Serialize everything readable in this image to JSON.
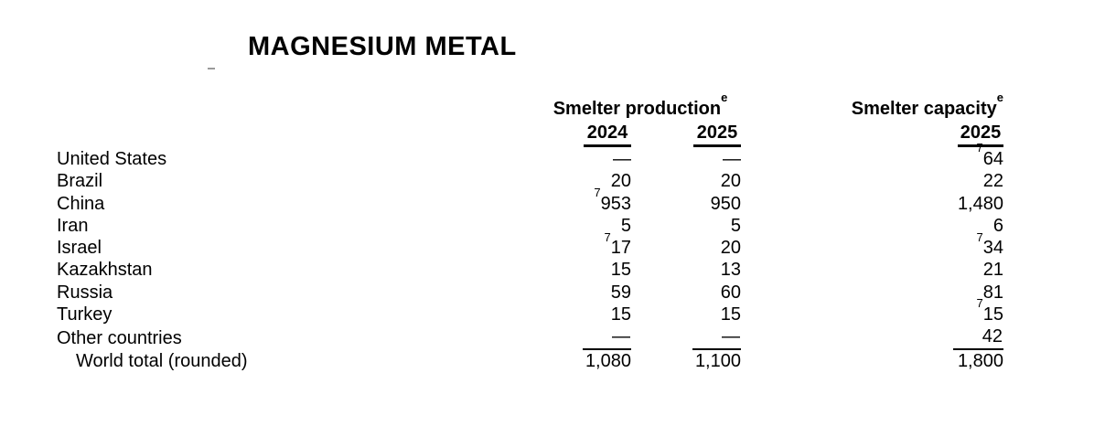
{
  "title": "MAGNESIUM METAL",
  "colors": {
    "text": "#000000",
    "background": "#ffffff",
    "stray_mark": "#9a9a9a"
  },
  "table": {
    "production_header": {
      "label": "Smelter production",
      "footnote": "e"
    },
    "capacity_header": {
      "label": "Smelter capacity",
      "footnote": "e"
    },
    "years": {
      "production_2024": "2024",
      "production_2025": "2025",
      "capacity_2025": "2025"
    },
    "rows": [
      {
        "country": "United States",
        "prod_2024": "—",
        "prod_2025": "—",
        "cap_2025": "64",
        "cap_2025_sup": "7"
      },
      {
        "country": "Brazil",
        "prod_2024": "20",
        "prod_2025": "20",
        "cap_2025": "22"
      },
      {
        "country": "China",
        "prod_2024": "953",
        "prod_2024_sup": "7",
        "prod_2025": "950",
        "cap_2025": "1,480"
      },
      {
        "country": "Iran",
        "prod_2024": "5",
        "prod_2025": "5",
        "cap_2025": "6"
      },
      {
        "country": "Israel",
        "prod_2024": "17",
        "prod_2024_sup": "7",
        "prod_2025": "20",
        "cap_2025": "34",
        "cap_2025_sup": "7"
      },
      {
        "country": "Kazakhstan",
        "prod_2024": "15",
        "prod_2025": "13",
        "cap_2025": "21"
      },
      {
        "country": "Russia",
        "prod_2024": "59",
        "prod_2025": "60",
        "cap_2025": "81"
      },
      {
        "country": "Turkey",
        "prod_2024": "15",
        "prod_2025": "15",
        "cap_2025": "15",
        "cap_2025_sup": "7"
      },
      {
        "country": "Other countries",
        "prod_2024": "—",
        "prod_2025": "—",
        "cap_2025": "42"
      },
      {
        "country": "World total (rounded)",
        "prod_2024": "1,080",
        "prod_2025": "1,100",
        "cap_2025": "1,800"
      }
    ]
  }
}
